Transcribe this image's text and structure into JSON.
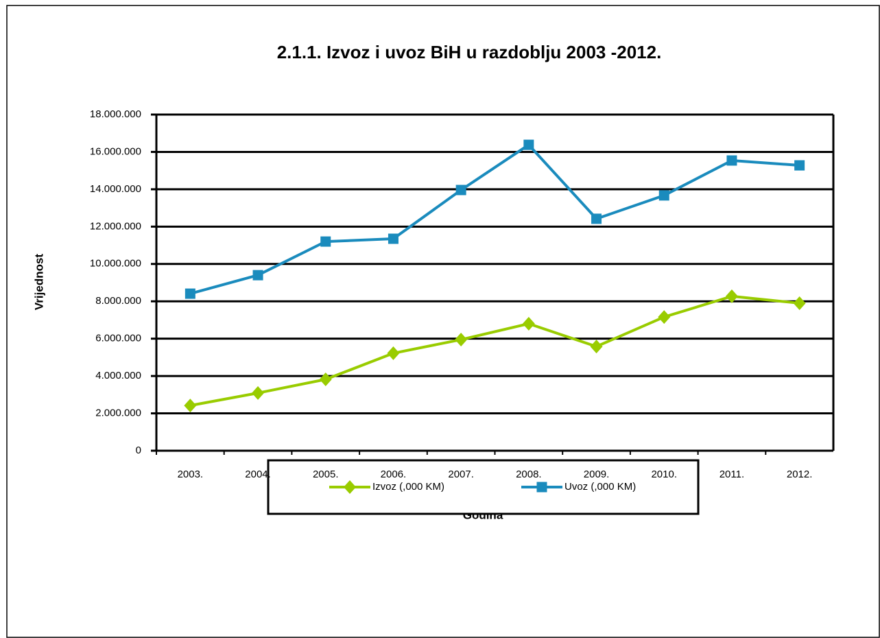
{
  "chart_data": {
    "type": "line",
    "title": "2.1.1. Izvoz i uvoz BiH u razdoblju 2003 -2012.",
    "x_label": "Godina",
    "y_label": "Vrijednost",
    "categories": [
      "2003.",
      "2004.",
      "2005.",
      "2006.",
      "2007.",
      "2008.",
      "2009.",
      "2010.",
      "2011.",
      "2012."
    ],
    "series": [
      {
        "name": "Izvoz (,000 KM)",
        "color": "#99cc00",
        "marker": "diamond",
        "values": [
          2420000,
          3090000,
          3820000,
          5220000,
          5950000,
          6800000,
          5580000,
          7160000,
          8270000,
          7900000
        ]
      },
      {
        "name": "Uvoz (,000 KM)",
        "color": "#1a8bbd",
        "marker": "square",
        "values": [
          8410000,
          9400000,
          11200000,
          11350000,
          13960000,
          16380000,
          12420000,
          13670000,
          15540000,
          15280000
        ]
      }
    ],
    "ylim": [
      0,
      18000000
    ],
    "yticks": [
      0,
      {
        "value": 2000000,
        "label": "2.000.000"
      },
      {
        "value": 4000000,
        "label": "4.000.000"
      },
      {
        "value": 6000000,
        "label": "6.000.000"
      },
      {
        "value": 8000000,
        "label": "8.000.000"
      },
      {
        "value": 10000000,
        "label": "10.000.000"
      },
      {
        "value": 12000000,
        "label": "12.000.000"
      },
      {
        "value": 14000000,
        "label": "14.000.000"
      },
      {
        "value": 16000000,
        "label": "16.000.000"
      },
      {
        "value": 18000000,
        "label": "18.000.000"
      }
    ],
    "grid": true,
    "legend": "bottom"
  }
}
